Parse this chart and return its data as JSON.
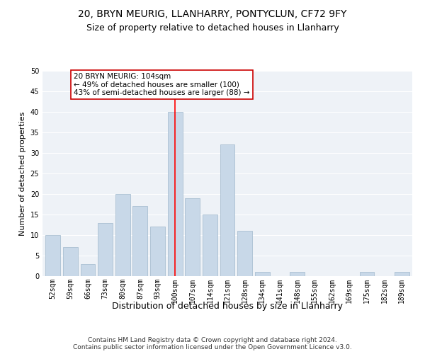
{
  "title1": "20, BRYN MEURIG, LLANHARRY, PONTYCLUN, CF72 9FY",
  "title2": "Size of property relative to detached houses in Llanharry",
  "xlabel": "Distribution of detached houses by size in Llanharry",
  "ylabel": "Number of detached properties",
  "categories": [
    "52sqm",
    "59sqm",
    "66sqm",
    "73sqm",
    "80sqm",
    "87sqm",
    "93sqm",
    "100sqm",
    "107sqm",
    "114sqm",
    "121sqm",
    "128sqm",
    "134sqm",
    "141sqm",
    "148sqm",
    "155sqm",
    "162sqm",
    "169sqm",
    "175sqm",
    "182sqm",
    "189sqm"
  ],
  "values": [
    10,
    7,
    3,
    13,
    20,
    17,
    12,
    40,
    19,
    15,
    32,
    11,
    1,
    0,
    1,
    0,
    0,
    0,
    1,
    0,
    1
  ],
  "bar_color": "#c8d8e8",
  "bar_edgecolor": "#a0b8cc",
  "highlight_index": 7,
  "annotation_text": "20 BRYN MEURIG: 104sqm\n← 49% of detached houses are smaller (100)\n43% of semi-detached houses are larger (88) →",
  "annotation_box_color": "#ffffff",
  "annotation_box_edgecolor": "#cc0000",
  "ylim": [
    0,
    50
  ],
  "yticks": [
    0,
    5,
    10,
    15,
    20,
    25,
    30,
    35,
    40,
    45,
    50
  ],
  "footer": "Contains HM Land Registry data © Crown copyright and database right 2024.\nContains public sector information licensed under the Open Government Licence v3.0.",
  "background_color": "#eef2f7",
  "title1_fontsize": 10,
  "title2_fontsize": 9,
  "xlabel_fontsize": 9,
  "ylabel_fontsize": 8,
  "footer_fontsize": 6.5,
  "tick_fontsize": 7,
  "annotation_fontsize": 7.5
}
